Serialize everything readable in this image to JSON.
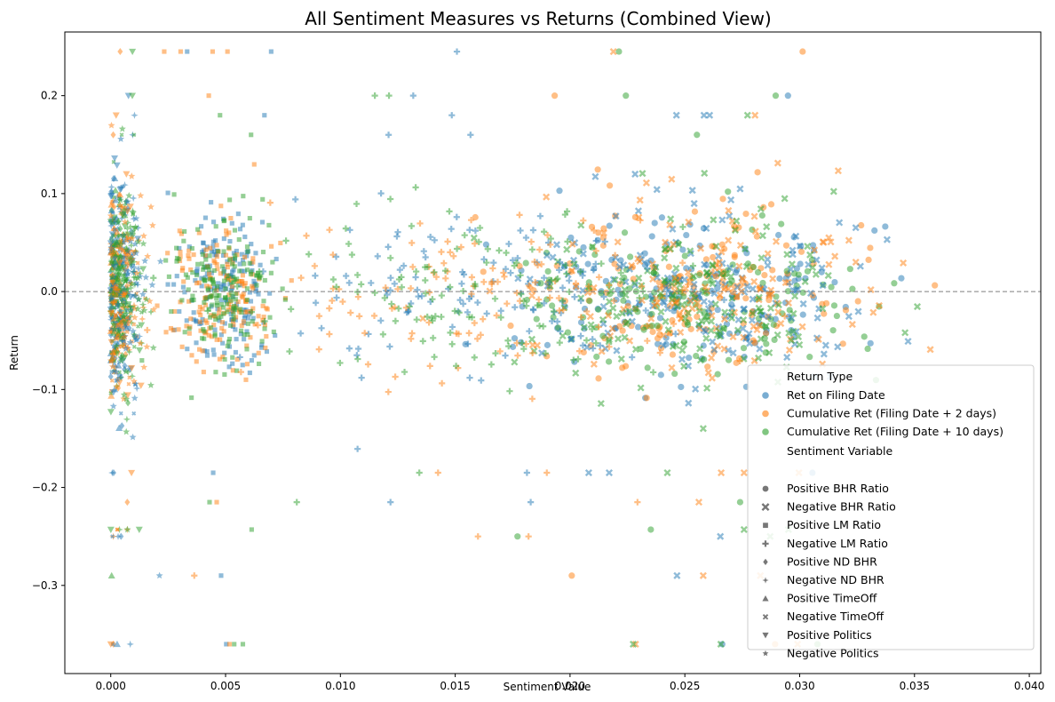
{
  "chart_data": {
    "type": "scatter",
    "title": "All Sentiment Measures vs Returns (Combined View)",
    "xlabel": "Sentiment Value",
    "ylabel": "Return",
    "xlim": [
      -0.002,
      0.0405
    ],
    "ylim": [
      -0.39,
      0.265
    ],
    "x_ticks": [
      0.0,
      0.005,
      0.01,
      0.015,
      0.02,
      0.025,
      0.03,
      0.035,
      0.04
    ],
    "x_tick_labels": [
      "0.000",
      "0.005",
      "0.010",
      "0.015",
      "0.020",
      "0.025",
      "0.030",
      "0.035",
      "0.040"
    ],
    "y_ticks": [
      -0.3,
      -0.2,
      -0.1,
      0.0,
      0.1,
      0.2
    ],
    "y_tick_labels": [
      "−0.3",
      "−0.2",
      "−0.1",
      "0.0",
      "0.1",
      "0.2"
    ],
    "reference_line": {
      "y": 0.0,
      "style": "dashed",
      "color": "#7f7f7f"
    },
    "legend": {
      "placement": "lower-right",
      "hue_title": "Return Type",
      "style_title": "Sentiment Variable",
      "hue_entries": [
        {
          "name": "Ret on Filing Date",
          "color": "#1f77b4"
        },
        {
          "name": "Cumulative Ret (Filing Date + 2 days)",
          "color": "#ff7f0e"
        },
        {
          "name": "Cumulative Ret (Filing Date + 10 days)",
          "color": "#2ca02c"
        }
      ],
      "style_entries": [
        {
          "name": "Positive BHR Ratio",
          "marker": "circle"
        },
        {
          "name": "Negative BHR Ratio",
          "marker": "x"
        },
        {
          "name": "Positive LM Ratio",
          "marker": "square"
        },
        {
          "name": "Negative LM Ratio",
          "marker": "plus"
        },
        {
          "name": "Positive ND BHR",
          "marker": "diamond"
        },
        {
          "name": "Negative ND BHR",
          "marker": "star4"
        },
        {
          "name": "Positive TimeOff",
          "marker": "triangle-up"
        },
        {
          "name": "Negative TimeOff",
          "marker": "x-small"
        },
        {
          "name": "Positive Politics",
          "marker": "triangle-down"
        },
        {
          "name": "Negative Politics",
          "marker": "star"
        }
      ]
    },
    "series": [
      {
        "name": "Ret on Filing Date",
        "color": "#1f77b4",
        "alpha": 0.5
      },
      {
        "name": "Cumulative Ret (Filing Date + 2 days)",
        "color": "#ff7f0e",
        "alpha": 0.5
      },
      {
        "name": "Cumulative Ret (Filing Date + 10 days)",
        "color": "#2ca02c",
        "alpha": 0.5
      }
    ],
    "clusters": [
      {
        "variable": "Positive BHR Ratio",
        "marker": "circle",
        "x_center": 0.025,
        "x_spread": 0.0035,
        "y_spread": 0.045,
        "count": 140
      },
      {
        "variable": "Negative BHR Ratio",
        "marker": "x",
        "x_center": 0.026,
        "x_spread": 0.0035,
        "y_spread": 0.045,
        "count": 160
      },
      {
        "variable": "Positive LM Ratio",
        "marker": "square",
        "x_center": 0.0048,
        "x_spread": 0.0012,
        "y_spread": 0.04,
        "count": 170
      },
      {
        "variable": "Negative LM Ratio",
        "marker": "plus",
        "x_center": 0.0155,
        "x_spread": 0.0045,
        "y_spread": 0.045,
        "count": 130
      },
      {
        "variable": "Positive ND BHR",
        "marker": "diamond",
        "x_center": 0.0003,
        "x_spread": 0.0003,
        "y_spread": 0.05,
        "count": 40
      },
      {
        "variable": "Negative ND BHR",
        "marker": "star4",
        "x_center": 0.0005,
        "x_spread": 0.0004,
        "y_spread": 0.05,
        "count": 50
      },
      {
        "variable": "Positive TimeOff",
        "marker": "triangle-up",
        "x_center": 0.0002,
        "x_spread": 0.0002,
        "y_spread": 0.05,
        "count": 30
      },
      {
        "variable": "Negative TimeOff",
        "marker": "x-small",
        "x_center": 0.0004,
        "x_spread": 0.0004,
        "y_spread": 0.05,
        "count": 40
      },
      {
        "variable": "Positive Politics",
        "marker": "triangle-down",
        "x_center": 0.0005,
        "x_spread": 0.0004,
        "y_spread": 0.055,
        "count": 35
      },
      {
        "variable": "Negative Politics",
        "marker": "star",
        "x_center": 0.0008,
        "x_spread": 0.0006,
        "y_spread": 0.055,
        "count": 45
      }
    ],
    "outlier_returns": [
      0.245,
      0.2,
      0.18,
      0.16,
      -0.185,
      -0.215,
      -0.243,
      -0.25,
      -0.29,
      -0.36
    ]
  }
}
